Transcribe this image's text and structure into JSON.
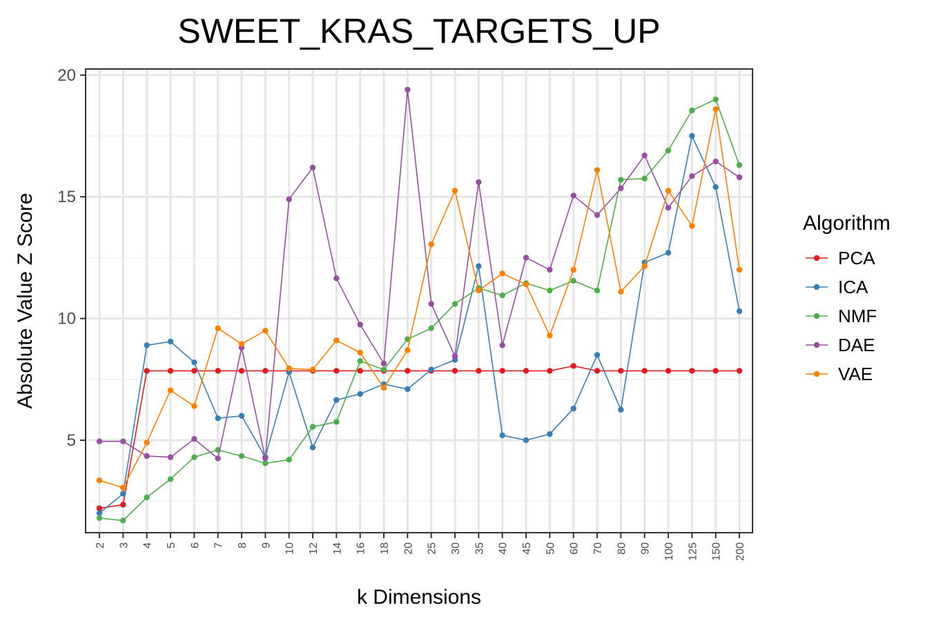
{
  "chart_data": {
    "type": "line",
    "title": "SWEET_KRAS_TARGETS_UP",
    "xlabel": "k Dimensions",
    "ylabel": "Absolute Value Z Score",
    "categories": [
      "2",
      "3",
      "4",
      "5",
      "6",
      "7",
      "8",
      "9",
      "10",
      "12",
      "14",
      "16",
      "18",
      "20",
      "25",
      "30",
      "35",
      "40",
      "45",
      "50",
      "60",
      "70",
      "80",
      "90",
      "100",
      "125",
      "150",
      "200"
    ],
    "yticks": [
      5,
      10,
      15,
      20
    ],
    "ylim": [
      1.2,
      20.25
    ],
    "grid": true,
    "legend": {
      "title": "Algorithm",
      "position": "right"
    },
    "series": [
      {
        "name": "PCA",
        "color": "#E41A1C",
        "values": [
          2.2,
          2.35,
          7.85,
          7.85,
          7.85,
          7.85,
          7.85,
          7.85,
          7.85,
          7.85,
          7.85,
          7.85,
          7.85,
          7.85,
          7.85,
          7.85,
          7.85,
          7.85,
          7.85,
          7.85,
          8.05,
          7.85,
          7.85,
          7.85,
          7.85,
          7.85,
          7.85,
          7.85
        ]
      },
      {
        "name": "ICA",
        "color": "#377EB8",
        "values": [
          2.0,
          2.8,
          8.9,
          9.05,
          8.2,
          5.9,
          6.0,
          4.3,
          7.8,
          4.7,
          6.65,
          6.9,
          7.3,
          7.1,
          7.9,
          8.3,
          12.15,
          5.2,
          5.0,
          5.25,
          6.3,
          8.5,
          6.25,
          12.3,
          12.7,
          17.5,
          15.4,
          10.3
        ]
      },
      {
        "name": "NMF",
        "color": "#4DAF4A",
        "values": [
          1.8,
          1.7,
          2.65,
          3.4,
          4.3,
          4.6,
          4.35,
          4.05,
          4.2,
          5.55,
          5.75,
          8.25,
          7.9,
          9.15,
          9.6,
          10.6,
          11.25,
          10.95,
          11.45,
          11.15,
          11.55,
          11.15,
          15.7,
          15.75,
          16.9,
          18.55,
          19.0,
          16.3
        ]
      },
      {
        "name": "DAE",
        "color": "#984EA3",
        "values": [
          4.95,
          4.95,
          4.35,
          4.3,
          5.05,
          4.25,
          8.8,
          4.25,
          14.9,
          16.2,
          11.65,
          9.75,
          8.15,
          19.4,
          10.6,
          8.45,
          15.6,
          8.9,
          12.5,
          12.0,
          15.05,
          14.25,
          15.35,
          16.7,
          14.55,
          15.85,
          16.45,
          15.8
        ]
      },
      {
        "name": "VAE",
        "color": "#FF7F00",
        "values": [
          3.35,
          3.05,
          4.9,
          7.05,
          6.4,
          9.6,
          8.95,
          9.5,
          7.95,
          7.9,
          9.1,
          8.6,
          7.15,
          8.7,
          13.05,
          15.25,
          11.15,
          11.85,
          11.4,
          9.3,
          12.0,
          16.1,
          11.1,
          12.15,
          15.25,
          13.8,
          18.6,
          12.0
        ]
      }
    ]
  }
}
